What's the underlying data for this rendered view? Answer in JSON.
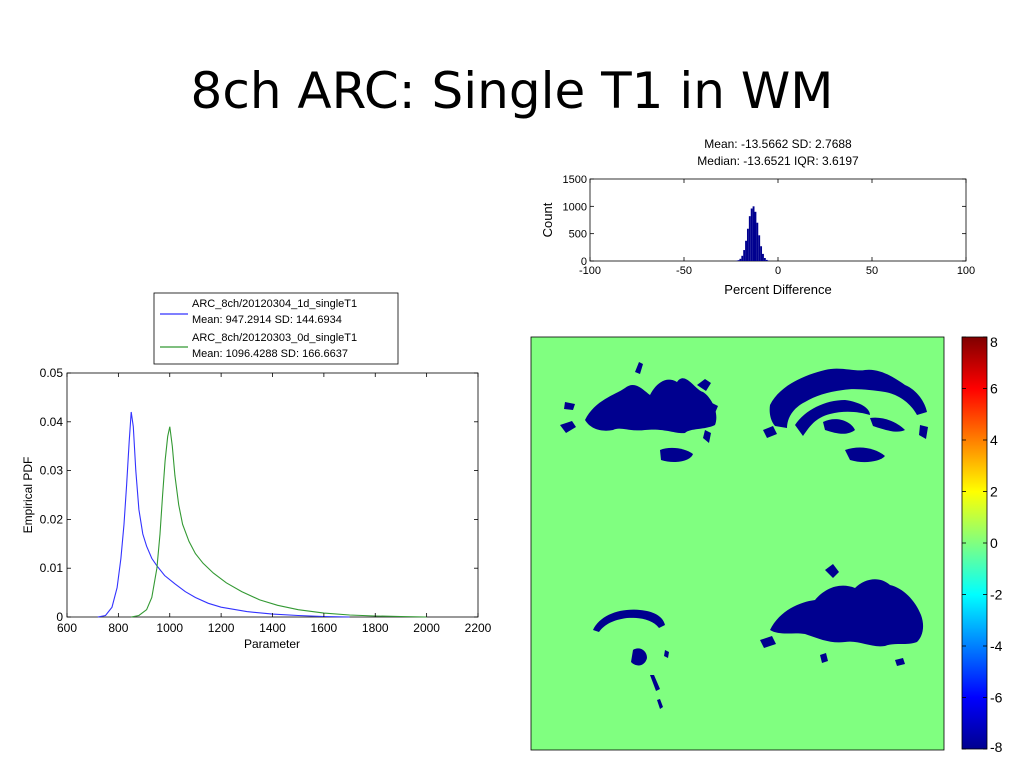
{
  "slide": {
    "title": "8ch ARC: Single T1 in WM"
  },
  "chart_data": [
    {
      "type": "bar",
      "id": "percent-difference-histogram",
      "title_lines": [
        "Mean: -13.5662 SD: 2.7688",
        "Median: -13.6521 IQR: 3.6197"
      ],
      "xlabel": "Percent Difference",
      "ylabel": "Count",
      "xlim": [
        -100,
        100
      ],
      "ylim": [
        0,
        1500
      ],
      "xticks": [
        "-100",
        "-50",
        "0",
        "50",
        "100"
      ],
      "yticks": [
        "0",
        "500",
        "1000",
        "1500"
      ],
      "bar_color": "#00008f",
      "bins": [
        {
          "x": -22,
          "y": 5
        },
        {
          "x": -21,
          "y": 15
        },
        {
          "x": -20,
          "y": 40
        },
        {
          "x": -19,
          "y": 95
        },
        {
          "x": -18,
          "y": 200
        },
        {
          "x": -17,
          "y": 370
        },
        {
          "x": -16,
          "y": 590
        },
        {
          "x": -15,
          "y": 820
        },
        {
          "x": -14,
          "y": 960
        },
        {
          "x": -13,
          "y": 1000
        },
        {
          "x": -12,
          "y": 900
        },
        {
          "x": -11,
          "y": 700
        },
        {
          "x": -10,
          "y": 470
        },
        {
          "x": -9,
          "y": 270
        },
        {
          "x": -8,
          "y": 130
        },
        {
          "x": -7,
          "y": 55
        },
        {
          "x": -6,
          "y": 20
        },
        {
          "x": -5,
          "y": 6
        }
      ]
    },
    {
      "type": "line",
      "id": "empirical-pdf",
      "xlabel": "Parameter",
      "ylabel": "Empirical PDF",
      "xlim": [
        600,
        2200
      ],
      "ylim": [
        0,
        0.05
      ],
      "xticks": [
        "600",
        "800",
        "1000",
        "1200",
        "1400",
        "1600",
        "1800",
        "2000",
        "2200"
      ],
      "yticks": [
        "0",
        "0.01",
        "0.02",
        "0.03",
        "0.04",
        "0.05"
      ],
      "legend_position": "top",
      "series": [
        {
          "name": "ARC_8ch/20120304_1d_singleT1",
          "stats": "Mean: 947.2914 SD: 144.6934",
          "color": "#3333ff",
          "points": [
            [
              720,
              0
            ],
            [
              750,
              0.0003
            ],
            [
              775,
              0.002
            ],
            [
              795,
              0.006
            ],
            [
              810,
              0.012
            ],
            [
              822,
              0.019
            ],
            [
              832,
              0.027
            ],
            [
              842,
              0.036
            ],
            [
              850,
              0.042
            ],
            [
              858,
              0.039
            ],
            [
              868,
              0.03
            ],
            [
              880,
              0.022
            ],
            [
              895,
              0.017
            ],
            [
              910,
              0.0145
            ],
            [
              930,
              0.012
            ],
            [
              950,
              0.0105
            ],
            [
              980,
              0.0085
            ],
            [
              1020,
              0.0068
            ],
            [
              1060,
              0.0052
            ],
            [
              1100,
              0.004
            ],
            [
              1150,
              0.0028
            ],
            [
              1200,
              0.002
            ],
            [
              1300,
              0.0011
            ],
            [
              1400,
              0.0006
            ],
            [
              1500,
              0.0003
            ],
            [
              1600,
              0.0001
            ],
            [
              1700,
              0
            ]
          ]
        },
        {
          "name": "ARC_8ch/20120303_0d_singleT1",
          "stats": "Mean: 1096.4288 SD: 166.6637",
          "color": "#339933",
          "points": [
            [
              850,
              0
            ],
            [
              880,
              0.0003
            ],
            [
              910,
              0.0015
            ],
            [
              930,
              0.004
            ],
            [
              950,
              0.01
            ],
            [
              962,
              0.017
            ],
            [
              972,
              0.025
            ],
            [
              982,
              0.032
            ],
            [
              992,
              0.037
            ],
            [
              1000,
              0.039
            ],
            [
              1010,
              0.035
            ],
            [
              1020,
              0.029
            ],
            [
              1035,
              0.023
            ],
            [
              1050,
              0.019
            ],
            [
              1075,
              0.0155
            ],
            [
              1100,
              0.013
            ],
            [
              1130,
              0.011
            ],
            [
              1170,
              0.009
            ],
            [
              1220,
              0.007
            ],
            [
              1280,
              0.0052
            ],
            [
              1350,
              0.0035
            ],
            [
              1420,
              0.0024
            ],
            [
              1500,
              0.0015
            ],
            [
              1600,
              0.0008
            ],
            [
              1700,
              0.0004
            ],
            [
              1800,
              0.0002
            ],
            [
              1900,
              0.0001
            ],
            [
              2000,
              0
            ]
          ]
        }
      ]
    },
    {
      "type": "heatmap",
      "id": "percent-difference-map",
      "background_value": 0,
      "region_value": -8,
      "colorbar_ticks": [
        "8",
        "6",
        "4",
        "2",
        "0",
        "-2",
        "-4",
        "-6",
        "-8"
      ],
      "colorbar_range": [
        -8,
        8
      ],
      "colormap": "jet"
    }
  ]
}
